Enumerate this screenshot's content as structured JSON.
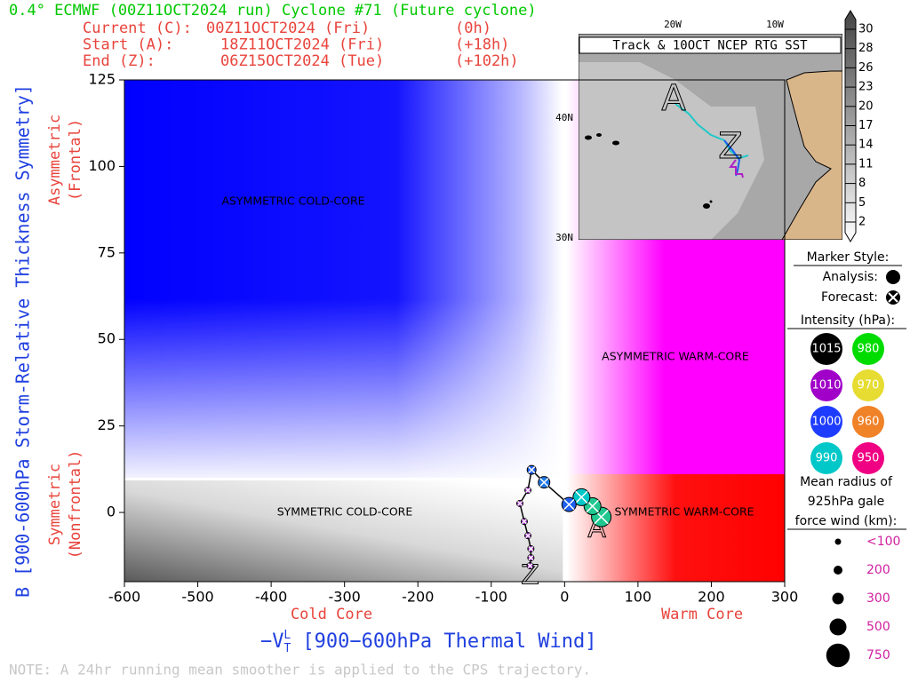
{
  "chart_data": {
    "type": "scatter",
    "title": "0.4° ECMWF (00Z11OCT2024 run) Cyclone #71 (Future cyclone)",
    "info": [
      [
        "Current (C):",
        "00Z11OCT2024 (Fri)",
        "(0h)"
      ],
      [
        "Start (A):",
        "18Z11OCT2024 (Fri)",
        "(+18h)"
      ],
      [
        "End (Z):",
        "06Z15OCT2024 (Tue)",
        "(+102h)"
      ]
    ],
    "ylabel": "B [900-600hPa Storm-Relative Thickness Symmetry]",
    "xlabel": [
      "−V",
      "T",
      "L",
      " [900−600hPa Thermal Wind]"
    ],
    "y_side_labels": [
      [
        "Asymmetric",
        "(Frontal)"
      ],
      [
        "Symmetric",
        "(Nonfrontal)"
      ]
    ],
    "x_side_labels": [
      "Cold Core",
      "Warm Core"
    ],
    "quadrant_labels": [
      "ASYMMETRIC COLD-CORE",
      "ASYMMETRIC WARM-CORE",
      "SYMMETRIC COLD-CORE",
      "SYMMETRIC WARM-CORE"
    ],
    "note": "NOTE:  A 24hr running mean smoother is applied to the CPS trajectory.",
    "xlim": [
      -600,
      300
    ],
    "ylim": [
      -20,
      125
    ],
    "xticks": [
      -600,
      -500,
      -400,
      -300,
      -200,
      -100,
      0,
      100,
      200,
      300
    ],
    "yticks": [
      0,
      25,
      50,
      75,
      100,
      125
    ],
    "start_label": "A",
    "end_label": "Z",
    "series": [
      {
        "x": [
          50,
          38,
          23,
          6,
          -28,
          -45,
          -50,
          -61,
          -55,
          -50,
          -46,
          -46,
          -47
        ],
        "values": [
          -1.3,
          1.8,
          4.4,
          2.3,
          8.7,
          12.3,
          6.4,
          2.6,
          -2.6,
          -6.7,
          -10.5,
          -13.1,
          -15.4
        ],
        "sizes": [
          600,
          500,
          500,
          400,
          300,
          200,
          100,
          100,
          100,
          100,
          100,
          100,
          100
        ],
        "colors": [
          "#20c890",
          "#20c890",
          "#00c8c8",
          "#1e5ff0",
          "#1e78e6",
          "#1e5ff0",
          "#a020c8",
          "#a020c8",
          "#a020c8",
          "#a020c8",
          "#a020c8",
          "#a020c8",
          "#a020c8"
        ]
      }
    ],
    "map": {
      "title": "Track & 10OCT NCEP RTG SST",
      "lon_labels": [
        "20W",
        "10W"
      ],
      "lat_labels": [
        "40N",
        "30N"
      ],
      "colorbar_ticks": [
        30,
        28,
        26,
        23,
        20,
        17,
        14,
        11,
        8,
        5,
        2
      ]
    },
    "legend": {
      "marker_title": "Marker Style:",
      "analysis": "Analysis:",
      "forecast": "Forecast:",
      "intensity_title": "Intensity (hPa):",
      "intensity": [
        {
          "label": "1015",
          "color": "#000000"
        },
        {
          "label": "980",
          "color": "#00dc00"
        },
        {
          "label": "1010",
          "color": "#a000c8"
        },
        {
          "label": "970",
          "color": "#e6dc32"
        },
        {
          "label": "1000",
          "color": "#1e3cff"
        },
        {
          "label": "960",
          "color": "#f08228"
        },
        {
          "label": "990",
          "color": "#00c8c8"
        },
        {
          "label": "950",
          "color": "#f00082"
        }
      ],
      "radius_title": [
        "Mean radius of",
        "925hPa gale",
        "force wind (km):"
      ],
      "radius": [
        {
          "value": 100,
          "label": "<100"
        },
        200,
        300,
        500,
        750
      ]
    }
  }
}
